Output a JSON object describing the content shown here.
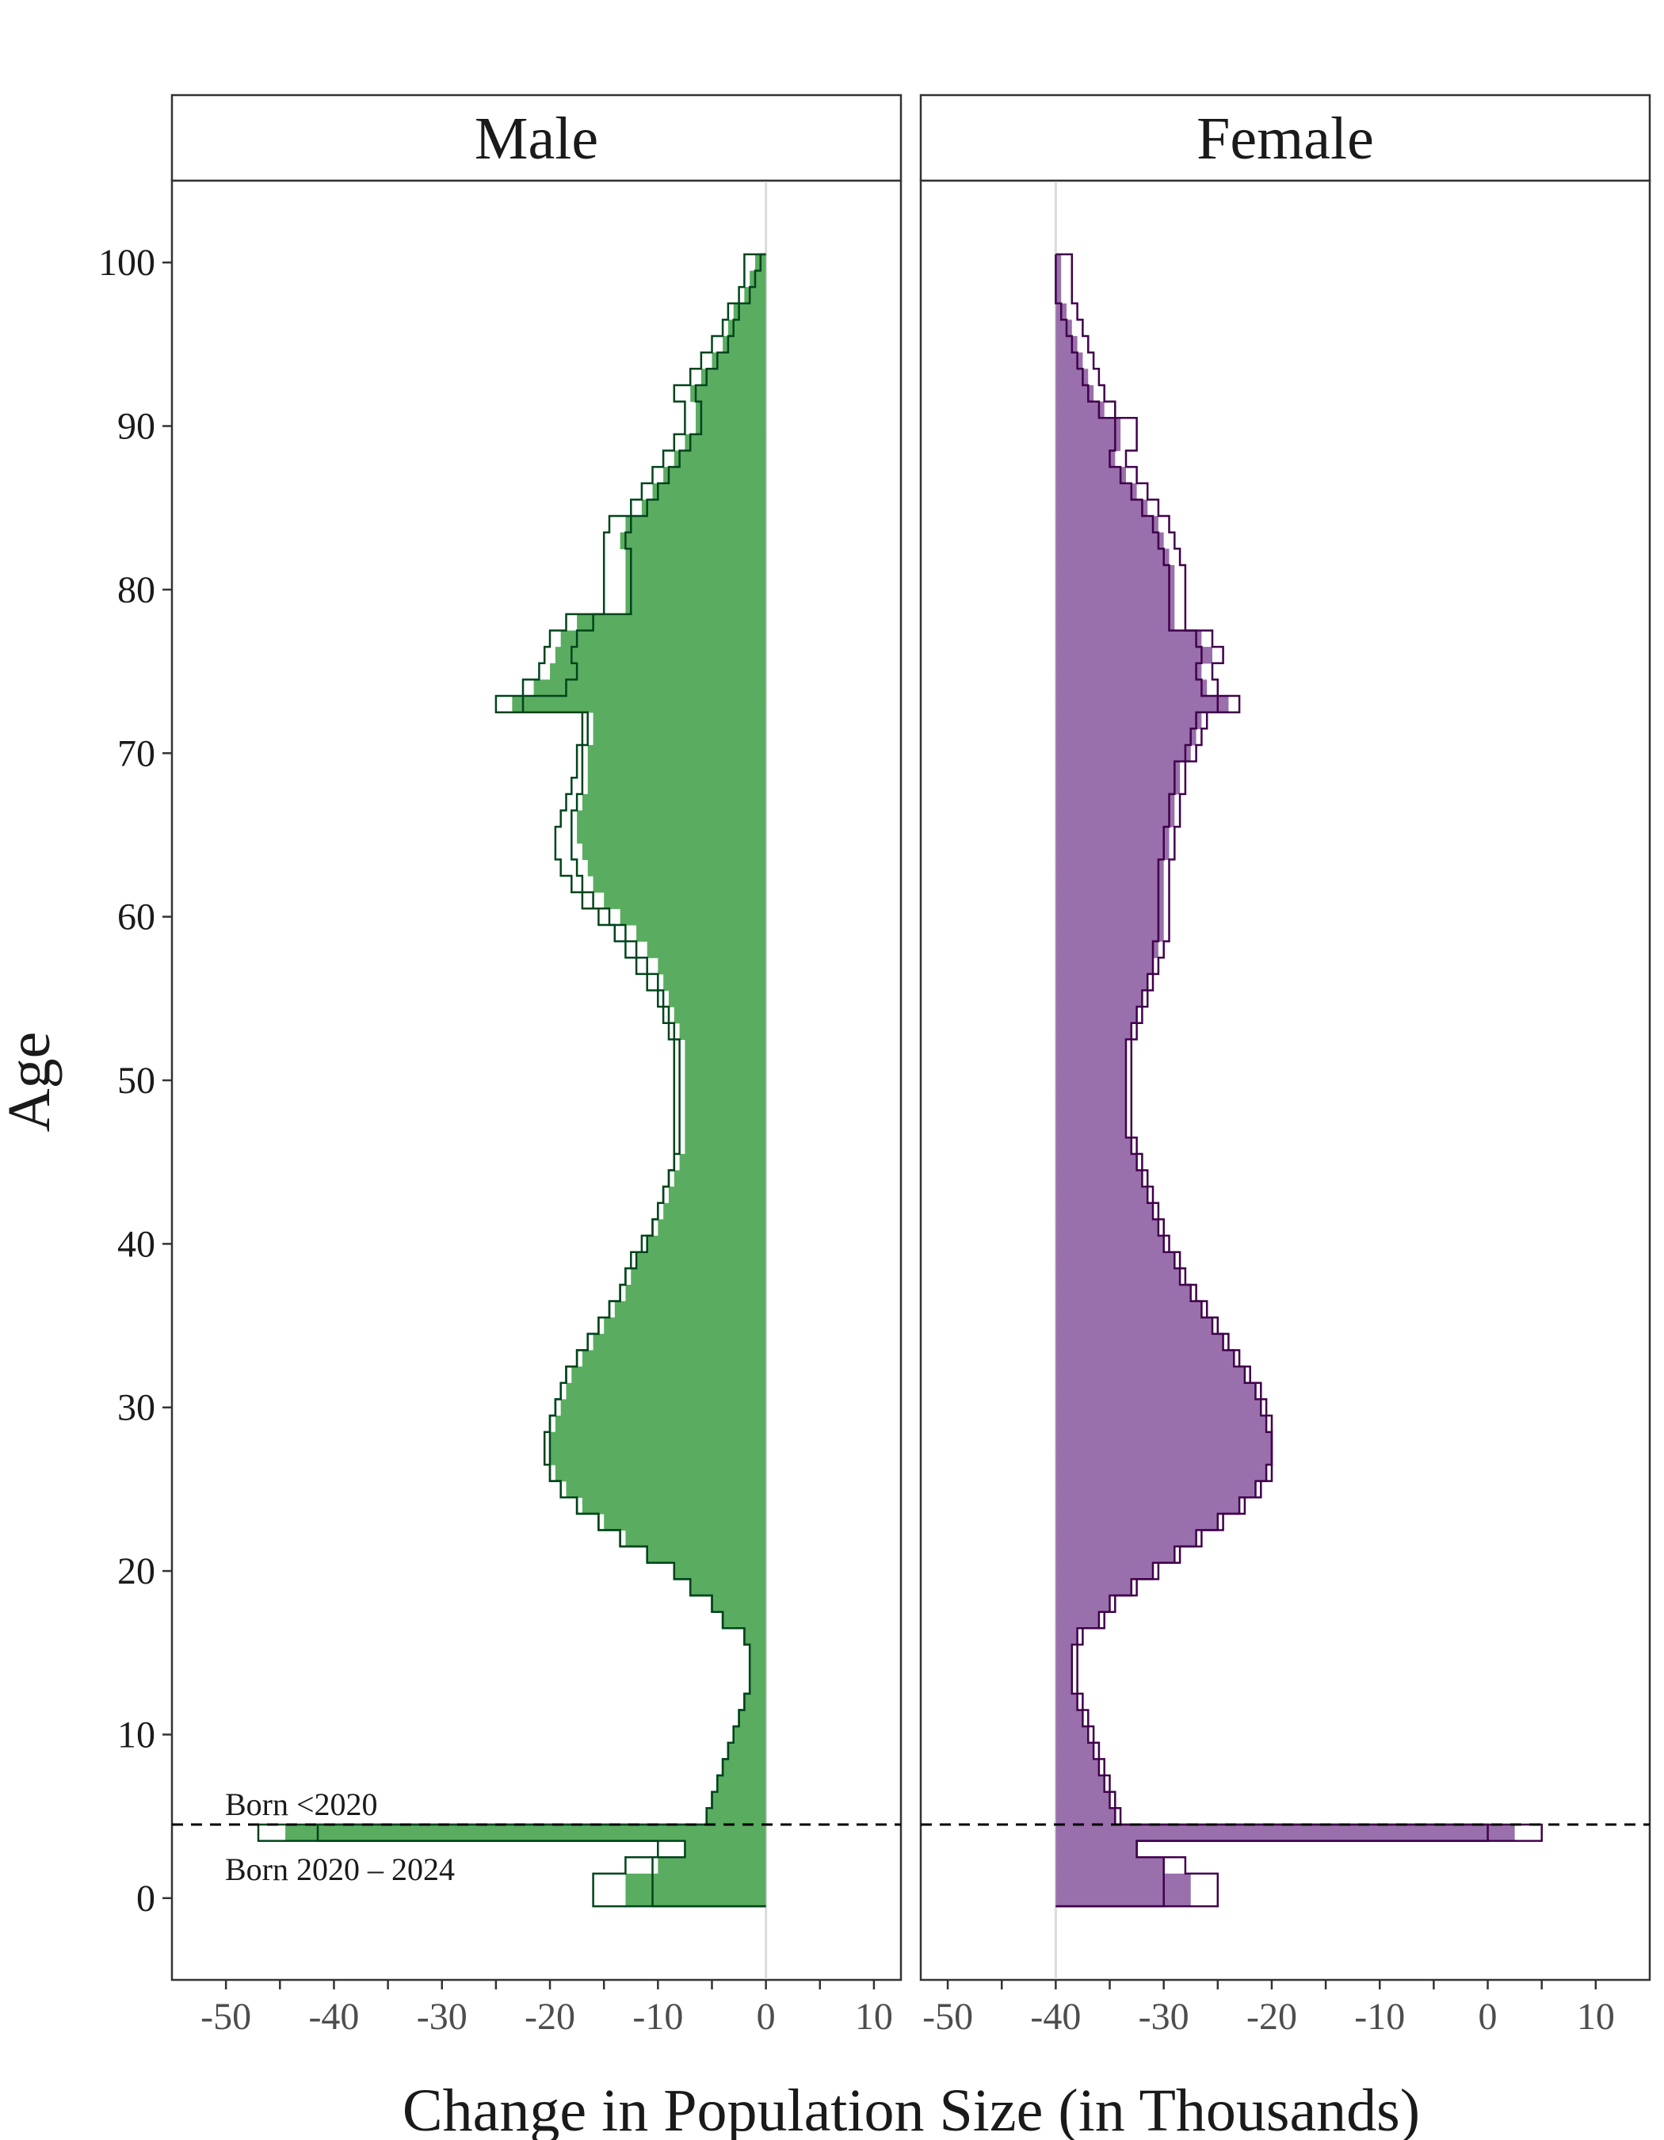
{
  "chart_data": {
    "type": "bar",
    "orientation": "horizontal",
    "description_of_layers": "filled bars with two step-line outlines per panel",
    "ylabel": "Age",
    "xlabel": "Change in Population Size (in Thousands)",
    "ylim": [
      -5,
      105
    ],
    "y_ticks": [
      0,
      10,
      20,
      30,
      40,
      50,
      60,
      70,
      80,
      90,
      100
    ],
    "x_ticks": [
      -50,
      -40,
      -30,
      -20,
      -10,
      0,
      10
    ],
    "male_tick_labels": [
      "-50",
      "-40",
      "-30",
      "-20",
      "-10",
      "0",
      "10"
    ],
    "female_tick_labels": [
      "10",
      "0",
      "-10",
      "-20",
      "-30",
      "-40",
      "-50"
    ],
    "xlim_male": [
      -55,
      12.5
    ],
    "xlim_female": [
      12.5,
      -55
    ],
    "cohort_divider_age": 4.5,
    "annotations": {
      "upper": "Born <2020",
      "lower": "Born 2020 – 2024"
    },
    "colors": {
      "male_fill": "#5aad60",
      "female_fill": "#9970ab",
      "male_line": "#00441b",
      "female_line": "#40004b"
    },
    "ages": [
      0,
      1,
      2,
      3,
      4,
      5,
      6,
      7,
      8,
      9,
      10,
      11,
      12,
      13,
      14,
      15,
      16,
      17,
      18,
      19,
      20,
      21,
      22,
      23,
      24,
      25,
      26,
      27,
      28,
      29,
      30,
      31,
      32,
      33,
      34,
      35,
      36,
      37,
      38,
      39,
      40,
      41,
      42,
      43,
      44,
      45,
      46,
      47,
      48,
      49,
      50,
      51,
      52,
      53,
      54,
      55,
      56,
      57,
      58,
      59,
      60,
      61,
      62,
      63,
      64,
      65,
      66,
      67,
      68,
      69,
      70,
      71,
      72,
      73,
      74,
      75,
      76,
      77,
      78,
      79,
      80,
      81,
      82,
      83,
      84,
      85,
      86,
      87,
      88,
      89,
      90,
      91,
      92,
      93,
      94,
      95,
      96,
      97,
      98,
      99,
      100
    ],
    "panels": [
      {
        "name": "Male",
        "series": [
          {
            "name": "fill",
            "values": [
              -13,
              -13,
              -10,
              -7.5,
              -44.5,
              -5.5,
              -5,
              -4.5,
              -4,
              -3.5,
              -3,
              -2.5,
              -2,
              -1.5,
              -1.5,
              -1.5,
              -2,
              -4,
              -5,
              -7,
              -8.5,
              -11,
              -13,
              -15,
              -17,
              -18.5,
              -19.5,
              -20,
              -20,
              -19.5,
              -19,
              -18.5,
              -18,
              -17,
              -16,
              -15,
              -14,
              -13,
              -12.5,
              -12,
              -11,
              -10,
              -9.5,
              -9,
              -8.5,
              -8,
              -7.5,
              -7.5,
              -7.5,
              -7.5,
              -7.5,
              -7.5,
              -7.5,
              -8,
              -8.5,
              -9,
              -9.5,
              -10,
              -11,
              -12,
              -13.5,
              -15,
              -16,
              -16.5,
              -17,
              -17.5,
              -17.5,
              -17,
              -16.5,
              -16.5,
              -16.5,
              -16,
              -16,
              -23.5,
              -21.5,
              -20,
              -19.5,
              -19,
              -17.5,
              -13,
              -13,
              -13,
              -13,
              -13.5,
              -13,
              -11.5,
              -10.5,
              -9.5,
              -8.5,
              -7.5,
              -6.5,
              -6.5,
              -7,
              -6,
              -5,
              -4,
              -3.5,
              -3,
              -2,
              -1.5,
              -1
            ]
          },
          {
            "name": "outline-inner",
            "values": [
              -10.5,
              -10.5,
              -10.5,
              -7.5,
              -41.5,
              -5.5,
              -5,
              -4.5,
              -4,
              -3.5,
              -3,
              -2.5,
              -2,
              -1.5,
              -1.5,
              -1.5,
              -2,
              -4,
              -5,
              -7,
              -8.5,
              -11,
              -13.5,
              -15.5,
              -17.5,
              -19,
              -20,
              -20,
              -20,
              -20,
              -19.5,
              -19,
              -18.5,
              -17.5,
              -16.5,
              -15.5,
              -14.5,
              -13.5,
              -13,
              -12,
              -11,
              -10.5,
              -10,
              -9.5,
              -9,
              -8.5,
              -8,
              -8,
              -8,
              -8,
              -8,
              -8,
              -8,
              -8.5,
              -9,
              -9.5,
              -10,
              -11,
              -12,
              -13,
              -14.5,
              -16,
              -17,
              -17.5,
              -18,
              -18,
              -18,
              -17.5,
              -17,
              -17,
              -17,
              -16.5,
              -16.5,
              -22.5,
              -18.5,
              -17.5,
              -18,
              -17.5,
              -16,
              -12.5,
              -12.5,
              -12.5,
              -12.5,
              -13,
              -12.5,
              -11,
              -10,
              -9,
              -8,
              -7,
              -6,
              -6,
              -6.5,
              -5.5,
              -4.5,
              -3.5,
              -3,
              -2.5,
              -1.5,
              -1,
              -0.5
            ]
          },
          {
            "name": "outline-outer",
            "values": [
              -16,
              -16,
              -13,
              -10,
              -47,
              -5.5,
              -5,
              -4.5,
              -4,
              -3.5,
              -3,
              -2.5,
              -2,
              -1.5,
              -1.5,
              -1.5,
              -2,
              -4,
              -5,
              -7,
              -8.5,
              -11,
              -13.5,
              -15.5,
              -17.5,
              -19,
              -20,
              -20.5,
              -20.5,
              -20,
              -19.5,
              -19,
              -18.5,
              -17.5,
              -16.5,
              -15.5,
              -14.5,
              -13.5,
              -13,
              -12.5,
              -11.5,
              -10.5,
              -10,
              -9.5,
              -9,
              -8.5,
              -8.5,
              -8.5,
              -8.5,
              -8.5,
              -8.5,
              -8.5,
              -8.5,
              -9,
              -9.5,
              -10,
              -11,
              -12,
              -13,
              -14,
              -15.5,
              -17,
              -18,
              -19,
              -19.5,
              -19.5,
              -19,
              -18.5,
              -18,
              -17.5,
              -17.5,
              -17,
              -17,
              -25,
              -22.5,
              -21,
              -20.5,
              -20,
              -18.5,
              -15,
              -15,
              -15,
              -15,
              -15,
              -14.5,
              -12.5,
              -11.5,
              -10.5,
              -9.5,
              -8.5,
              -7.5,
              -7.5,
              -8.5,
              -7,
              -6,
              -5,
              -4,
              -3.5,
              -2.5,
              -2,
              -2
            ]
          }
        ]
      },
      {
        "name": "Female",
        "series": [
          {
            "name": "fill",
            "values": [
              -12.5,
              -12.5,
              -10,
              -7.5,
              -42.5,
              -5.5,
              -5,
              -4.5,
              -4,
              -3.5,
              -3,
              -2.5,
              -2,
              -1.5,
              -1.5,
              -1.5,
              -2,
              -4,
              -5,
              -7,
              -9,
              -11,
              -13,
              -15,
              -17,
              -18.5,
              -19.5,
              -20,
              -20,
              -19.5,
              -19,
              -18.5,
              -17.5,
              -16.5,
              -15.5,
              -14.5,
              -13.5,
              -12.5,
              -11.5,
              -11,
              -10,
              -9.5,
              -9,
              -8.5,
              -8,
              -7.5,
              -7,
              -6.5,
              -6.5,
              -6.5,
              -6.5,
              -6.5,
              -6.5,
              -7,
              -7.5,
              -8,
              -8.5,
              -9,
              -9.5,
              -10,
              -10,
              -10,
              -10,
              -10,
              -10.5,
              -10.5,
              -11,
              -11,
              -11.5,
              -11.5,
              -12.5,
              -13,
              -13.5,
              -16,
              -14,
              -13.5,
              -14.5,
              -13.5,
              -11,
              -11,
              -11,
              -11,
              -10.5,
              -10,
              -9.5,
              -8.5,
              -7.5,
              -6.5,
              -5.5,
              -6,
              -6,
              -4.5,
              -3.5,
              -3,
              -2.5,
              -2,
              -1.5,
              -1,
              -0.5,
              -0.5,
              -0.5
            ]
          },
          {
            "name": "outline-inner",
            "values": [
              -10,
              -10,
              -10,
              -7.5,
              -40,
              -5.5,
              -5,
              -4.5,
              -4,
              -3.5,
              -3,
              -2.5,
              -2,
              -1.5,
              -1.5,
              -1.5,
              -2,
              -4,
              -5,
              -7,
              -9,
              -11,
              -13,
              -15,
              -17,
              -18.5,
              -19.5,
              -20,
              -20,
              -19.5,
              -19,
              -18.5,
              -17.5,
              -16.5,
              -15.5,
              -14.5,
              -13.5,
              -12.5,
              -11.5,
              -11,
              -10,
              -9.5,
              -9,
              -8.5,
              -8,
              -7.5,
              -7,
              -6.5,
              -6.5,
              -6.5,
              -6.5,
              -6.5,
              -6.5,
              -7,
              -7.5,
              -8,
              -8.5,
              -9,
              -9,
              -9.5,
              -9.5,
              -9.5,
              -9.5,
              -9.5,
              -10,
              -10,
              -10.5,
              -10.5,
              -11,
              -11,
              -12,
              -12.5,
              -13,
              -15,
              -13.5,
              -13,
              -13.5,
              -13,
              -10.5,
              -10.5,
              -10.5,
              -10.5,
              -10,
              -9.5,
              -9,
              -8,
              -7,
              -6,
              -5,
              -5.5,
              -5.5,
              -4,
              -3,
              -2.5,
              -2,
              -1.5,
              -1,
              -0.5,
              0,
              0,
              0
            ]
          },
          {
            "name": "outline-outer",
            "values": [
              -15,
              -15,
              -12,
              -7.5,
              -45,
              -6,
              -5.5,
              -5,
              -4.5,
              -4,
              -3.5,
              -3,
              -2.5,
              -2,
              -2,
              -2,
              -2.5,
              -4.5,
              -5.5,
              -7.5,
              -9.5,
              -11.5,
              -13.5,
              -15.5,
              -17.5,
              -19,
              -20,
              -20,
              -20,
              -20,
              -19.5,
              -19,
              -18,
              -17,
              -16,
              -15,
              -14,
              -13,
              -12,
              -11.5,
              -10.5,
              -10,
              -9.5,
              -9,
              -8.5,
              -8,
              -7.5,
              -7,
              -7,
              -7,
              -7,
              -7,
              -7,
              -7.5,
              -8,
              -8.5,
              -9,
              -9.5,
              -10,
              -10.5,
              -10.5,
              -10.5,
              -10.5,
              -10.5,
              -11,
              -11,
              -11.5,
              -11.5,
              -12,
              -12,
              -13,
              -13.5,
              -14,
              -17,
              -15,
              -14.5,
              -15.5,
              -14.5,
              -12,
              -12,
              -12,
              -12,
              -11.5,
              -11,
              -10.5,
              -9.5,
              -8.5,
              -7.5,
              -6.5,
              -7.5,
              -7.5,
              -5.5,
              -4.5,
              -4,
              -3.5,
              -3,
              -2.5,
              -2,
              -1.5,
              -1.5,
              -1.5
            ]
          }
        ]
      }
    ]
  }
}
